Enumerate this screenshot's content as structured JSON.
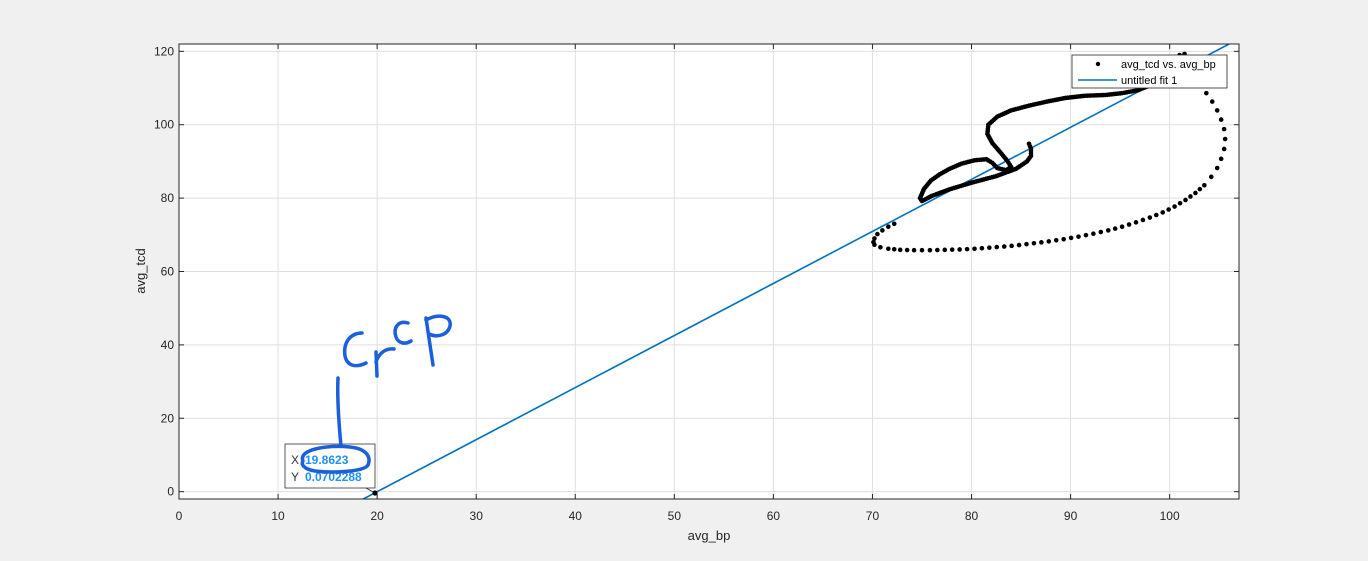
{
  "chart_data": {
    "type": "scatter",
    "xlabel": "avg_bp",
    "ylabel": "avg_tcd",
    "xlim": [
      0,
      107
    ],
    "ylim": [
      -2,
      122
    ],
    "xticks": [
      0,
      10,
      20,
      30,
      40,
      50,
      60,
      70,
      80,
      90,
      100
    ],
    "yticks": [
      0,
      20,
      40,
      60,
      80,
      100,
      120
    ],
    "grid": true,
    "legend_position": "top-right",
    "legend": [
      {
        "label": "avg_tcd vs. avg_bp",
        "marker": "dot"
      },
      {
        "label": "untitled fit 1",
        "marker": "line"
      }
    ],
    "series": [
      {
        "name": "avg_tcd vs. avg_bp",
        "kind": "scatter",
        "color": "#000000",
        "points": [
          [
            72.2,
            73
          ],
          [
            71.6,
            72.2
          ],
          [
            71,
            71.2
          ],
          [
            70.5,
            70.2
          ],
          [
            70.2,
            69
          ],
          [
            70.1,
            68
          ],
          [
            70.2,
            67.3
          ],
          [
            70.8,
            66.6
          ],
          [
            71.6,
            66.2
          ],
          [
            72.8,
            65.9
          ],
          [
            74.2,
            65.8
          ],
          [
            75.8,
            65.8
          ],
          [
            77.3,
            65.9
          ],
          [
            78.8,
            66.0
          ],
          [
            80.3,
            66.2
          ],
          [
            81.8,
            66.5
          ],
          [
            83.3,
            66.8
          ],
          [
            84.8,
            67.2
          ],
          [
            86.3,
            67.7
          ],
          [
            87.8,
            68.2
          ],
          [
            89.3,
            68.8
          ],
          [
            90.8,
            69.5
          ],
          [
            92.3,
            70.3
          ],
          [
            93.8,
            71.2
          ],
          [
            95.2,
            72.2
          ],
          [
            96.6,
            73.4
          ],
          [
            98,
            74.7
          ],
          [
            99.3,
            76.1
          ],
          [
            100.5,
            77.7
          ],
          [
            101.6,
            79.5
          ],
          [
            102.6,
            81.4
          ],
          [
            103.5,
            83.5
          ],
          [
            104.2,
            85.8
          ],
          [
            104.8,
            88.2
          ],
          [
            105.2,
            90.7
          ],
          [
            105.5,
            93.4
          ],
          [
            105.6,
            96.1
          ],
          [
            105.5,
            98.8
          ],
          [
            105.2,
            101.4
          ],
          [
            104.8,
            103.9
          ],
          [
            104.3,
            106.3
          ],
          [
            103.7,
            108.6
          ],
          [
            103.1,
            110.8
          ],
          [
            102.6,
            112.8
          ],
          [
            102,
            114.8
          ],
          [
            101.5,
            116.6
          ],
          [
            101.2,
            118.2
          ],
          [
            101,
            119
          ],
          [
            101.5,
            119.3
          ],
          [
            101.2,
            117.6
          ],
          [
            100.6,
            115.5
          ],
          [
            99.6,
            113.2
          ],
          [
            98.3,
            111.0
          ],
          [
            96.8,
            109.4
          ],
          [
            95.2,
            108.6
          ],
          [
            93.5,
            108.1
          ],
          [
            91.5,
            107.9
          ],
          [
            89.5,
            107.3
          ],
          [
            87.6,
            106.3
          ],
          [
            85.8,
            105.2
          ],
          [
            84.0,
            103.9
          ],
          [
            82.6,
            102.2
          ],
          [
            81.7,
            100.0
          ],
          [
            81.6,
            97.5
          ],
          [
            82.1,
            95.0
          ],
          [
            82.9,
            92.5
          ],
          [
            83.6,
            90.2
          ],
          [
            84.0,
            88.5
          ],
          [
            83.5,
            87.6
          ],
          [
            82.6,
            88.2
          ],
          [
            82.1,
            89.6
          ],
          [
            81.5,
            90.6
          ],
          [
            80.3,
            90.3
          ],
          [
            79.0,
            89.4
          ],
          [
            77.8,
            88.0
          ],
          [
            76.8,
            86.5
          ],
          [
            75.9,
            84.8
          ],
          [
            75.2,
            82.5
          ],
          [
            74.8,
            80.0
          ],
          [
            75.0,
            79.2
          ],
          [
            76.0,
            80.6
          ],
          [
            77.8,
            82.4
          ],
          [
            80.0,
            84.2
          ],
          [
            82.5,
            86.0
          ],
          [
            84.5,
            88.0
          ],
          [
            85.6,
            90.0
          ],
          [
            86.0,
            91.5
          ],
          [
            86.0,
            93.5
          ],
          [
            85.8,
            94.8
          ]
        ]
      },
      {
        "name": "untitled fit 1",
        "kind": "line",
        "color": "#0072bd",
        "x": [
          18.6,
          106
        ],
        "y": [
          -2,
          122
        ]
      }
    ],
    "datatip": {
      "x_label": "X",
      "x_value": "19.8623",
      "y_label": "Y",
      "y_value": "0.0702288",
      "point": [
        19.8623,
        0.0702288
      ]
    },
    "annotation": {
      "handwriting": "crcp",
      "color": "#1a5fdc"
    }
  }
}
